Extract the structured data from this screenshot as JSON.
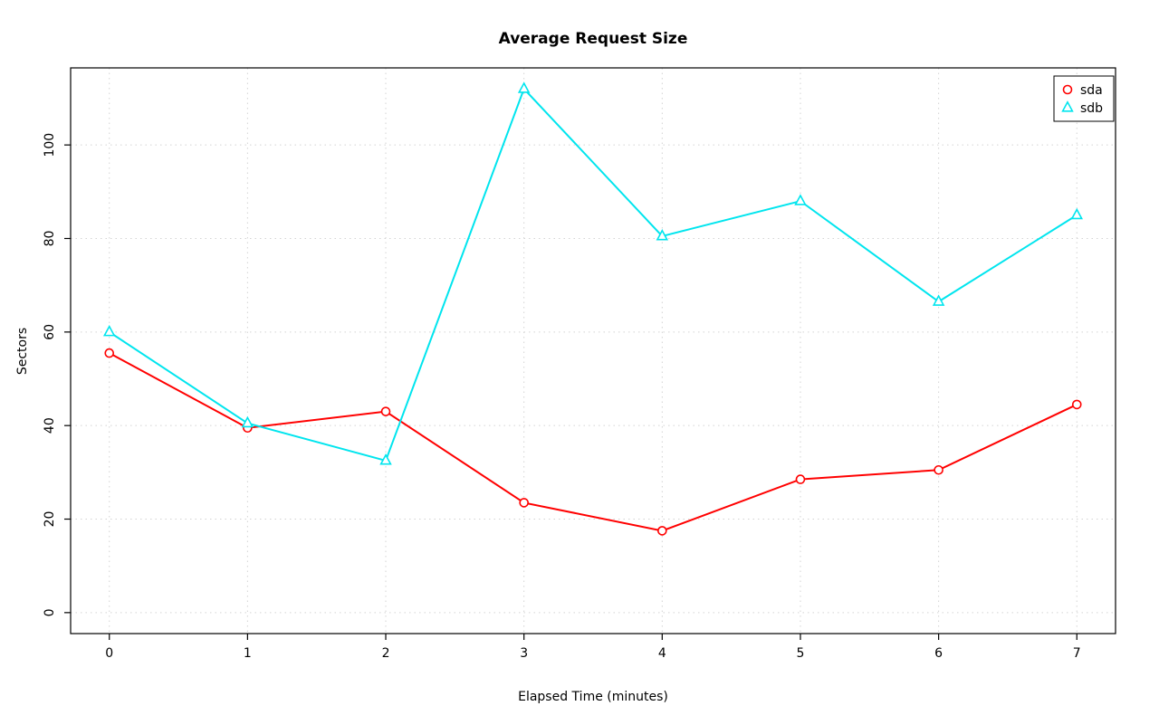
{
  "chart_data": {
    "type": "line",
    "title": "Average Request Size",
    "xlabel": "Elapsed Time (minutes)",
    "ylabel": "Sectors",
    "x": [
      0,
      1,
      2,
      3,
      4,
      5,
      6,
      7
    ],
    "xticks": [
      0,
      1,
      2,
      3,
      4,
      5,
      6,
      7
    ],
    "yticks": [
      0,
      20,
      40,
      60,
      80,
      100
    ],
    "xlim": [
      0,
      7
    ],
    "ylim": [
      0,
      112
    ],
    "grid": true,
    "grid_style": "dotted",
    "grid_color": "#d3d3d3",
    "legend_position": "top-right",
    "series": [
      {
        "name": "sda",
        "color": "#ff0000",
        "marker": "circle",
        "values": [
          55.5,
          39.5,
          43,
          23.5,
          17.5,
          28.5,
          30.5,
          44.5
        ]
      },
      {
        "name": "sdb",
        "color": "#00e5ee",
        "marker": "triangle",
        "values": [
          60,
          40.5,
          32.5,
          112,
          80.5,
          88,
          66.5,
          85
        ]
      }
    ]
  }
}
